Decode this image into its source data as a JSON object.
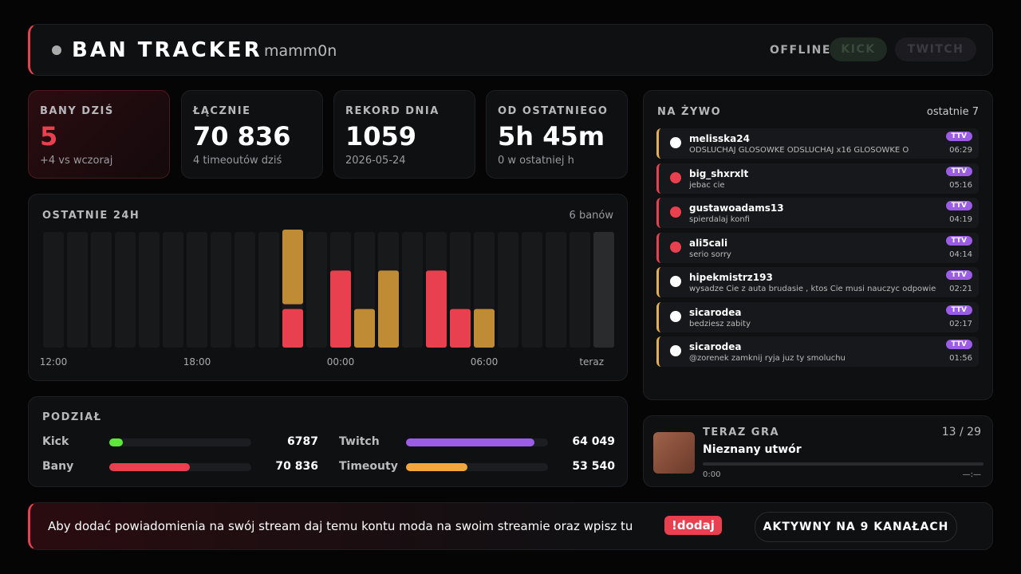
{
  "header": {
    "status": "OFFLINE",
    "title": "BAN TRACKER",
    "user": "mamm0n",
    "buttons": [
      "KICK",
      "TWITCH"
    ]
  },
  "stats": [
    {
      "label": "BANY DZIŚ",
      "value": "5",
      "sub": "+4 vs wczoraj"
    },
    {
      "label": "ŁĄCZNIE",
      "value": "70 836",
      "sub": "4 timeoutów dziś"
    },
    {
      "label": "REKORD DNIA",
      "value": "1059",
      "sub": "2026-05-24"
    },
    {
      "label": "OD OSTATNIEGO",
      "value": "5h 45m",
      "sub": "0 w ostatniej h"
    }
  ],
  "chart_data": {
    "type": "bar",
    "stacked": true,
    "title": "OSTATNIE 24H",
    "subtitle": "6 banów",
    "categories": [
      "12:00",
      null,
      null,
      null,
      null,
      null,
      "18:00",
      null,
      null,
      null,
      null,
      null,
      "00:00",
      null,
      null,
      null,
      null,
      null,
      "06:00",
      null,
      null,
      null,
      null,
      "teraz"
    ],
    "series": [
      {
        "color": "#e8404f",
        "values": [
          0,
          0,
          0,
          0,
          0,
          0,
          0,
          0,
          0,
          0,
          1,
          0,
          2,
          0,
          0,
          0,
          2,
          1,
          0,
          0,
          0,
          0,
          0,
          0
        ]
      },
      {
        "color": "#c08b35",
        "values": [
          0,
          0,
          0,
          0,
          0,
          0,
          0,
          0,
          0,
          0,
          2,
          0,
          0,
          1,
          2,
          0,
          0,
          0,
          1,
          0,
          0,
          0,
          0,
          0
        ]
      }
    ],
    "ylim": [
      0,
      3
    ]
  },
  "split": {
    "title": "PODZIAŁ",
    "pairs": [
      [
        {
          "name": "Kick",
          "color": "#5ee83a",
          "value": 6787,
          "label": "6787"
        },
        {
          "name": "Twitch",
          "color": "#9b5de5",
          "value": 64049,
          "label": "64 049"
        }
      ],
      [
        {
          "name": "Bany",
          "color": "#e8404f",
          "value": 70836,
          "label": "70 836"
        },
        {
          "name": "Timeouty",
          "color": "#f0a83c",
          "value": 53540,
          "label": "53 540"
        }
      ]
    ]
  },
  "live": {
    "title": "NA ŻYWO",
    "meta": "ostatnie 7",
    "items": [
      {
        "kind": "timeout",
        "user": "melisska24",
        "msg": "ODSLUCHAJ GLOSOWKE ODSLUCHAJ x16 GLOSOWKE O",
        "badge": "TTV",
        "time": "06:29"
      },
      {
        "kind": "ban",
        "user": "big_shxrxlt",
        "msg": "jebac cie",
        "badge": "TTV",
        "time": "05:16"
      },
      {
        "kind": "ban",
        "user": "gustawoadams13",
        "msg": "spierdalaj konfi",
        "badge": "TTV",
        "time": "04:19"
      },
      {
        "kind": "ban",
        "user": "ali5cali",
        "msg": "serio sorry",
        "badge": "TTV",
        "time": "04:14"
      },
      {
        "kind": "timeout",
        "user": "hipekmistrz193",
        "msg": "wysadze Cie z auta brudasie , ktos Cie musi nauczyc odpowiedniego",
        "badge": "TTV",
        "time": "02:21"
      },
      {
        "kind": "timeout",
        "user": "sicarodea",
        "msg": "bedziesz zabity",
        "badge": "TTV",
        "time": "02:17"
      },
      {
        "kind": "timeout",
        "user": "sicarodea",
        "msg": "@zorenek zamknij ryja juz ty smoluchu",
        "badge": "TTV",
        "time": "01:56"
      }
    ]
  },
  "player": {
    "title": "TERAZ GRA",
    "position": "13 / 29",
    "track": "Nieznany utwór",
    "elapsed": "0:00",
    "duration": "—:—"
  },
  "footer": {
    "text": "Aby dodać powiadomienia na swój stream daj temu kontu moda na swoim streamie oraz wpisz tu",
    "command": "!dodaj",
    "status": "AKTYWNY NA 9 KANAŁACH"
  }
}
